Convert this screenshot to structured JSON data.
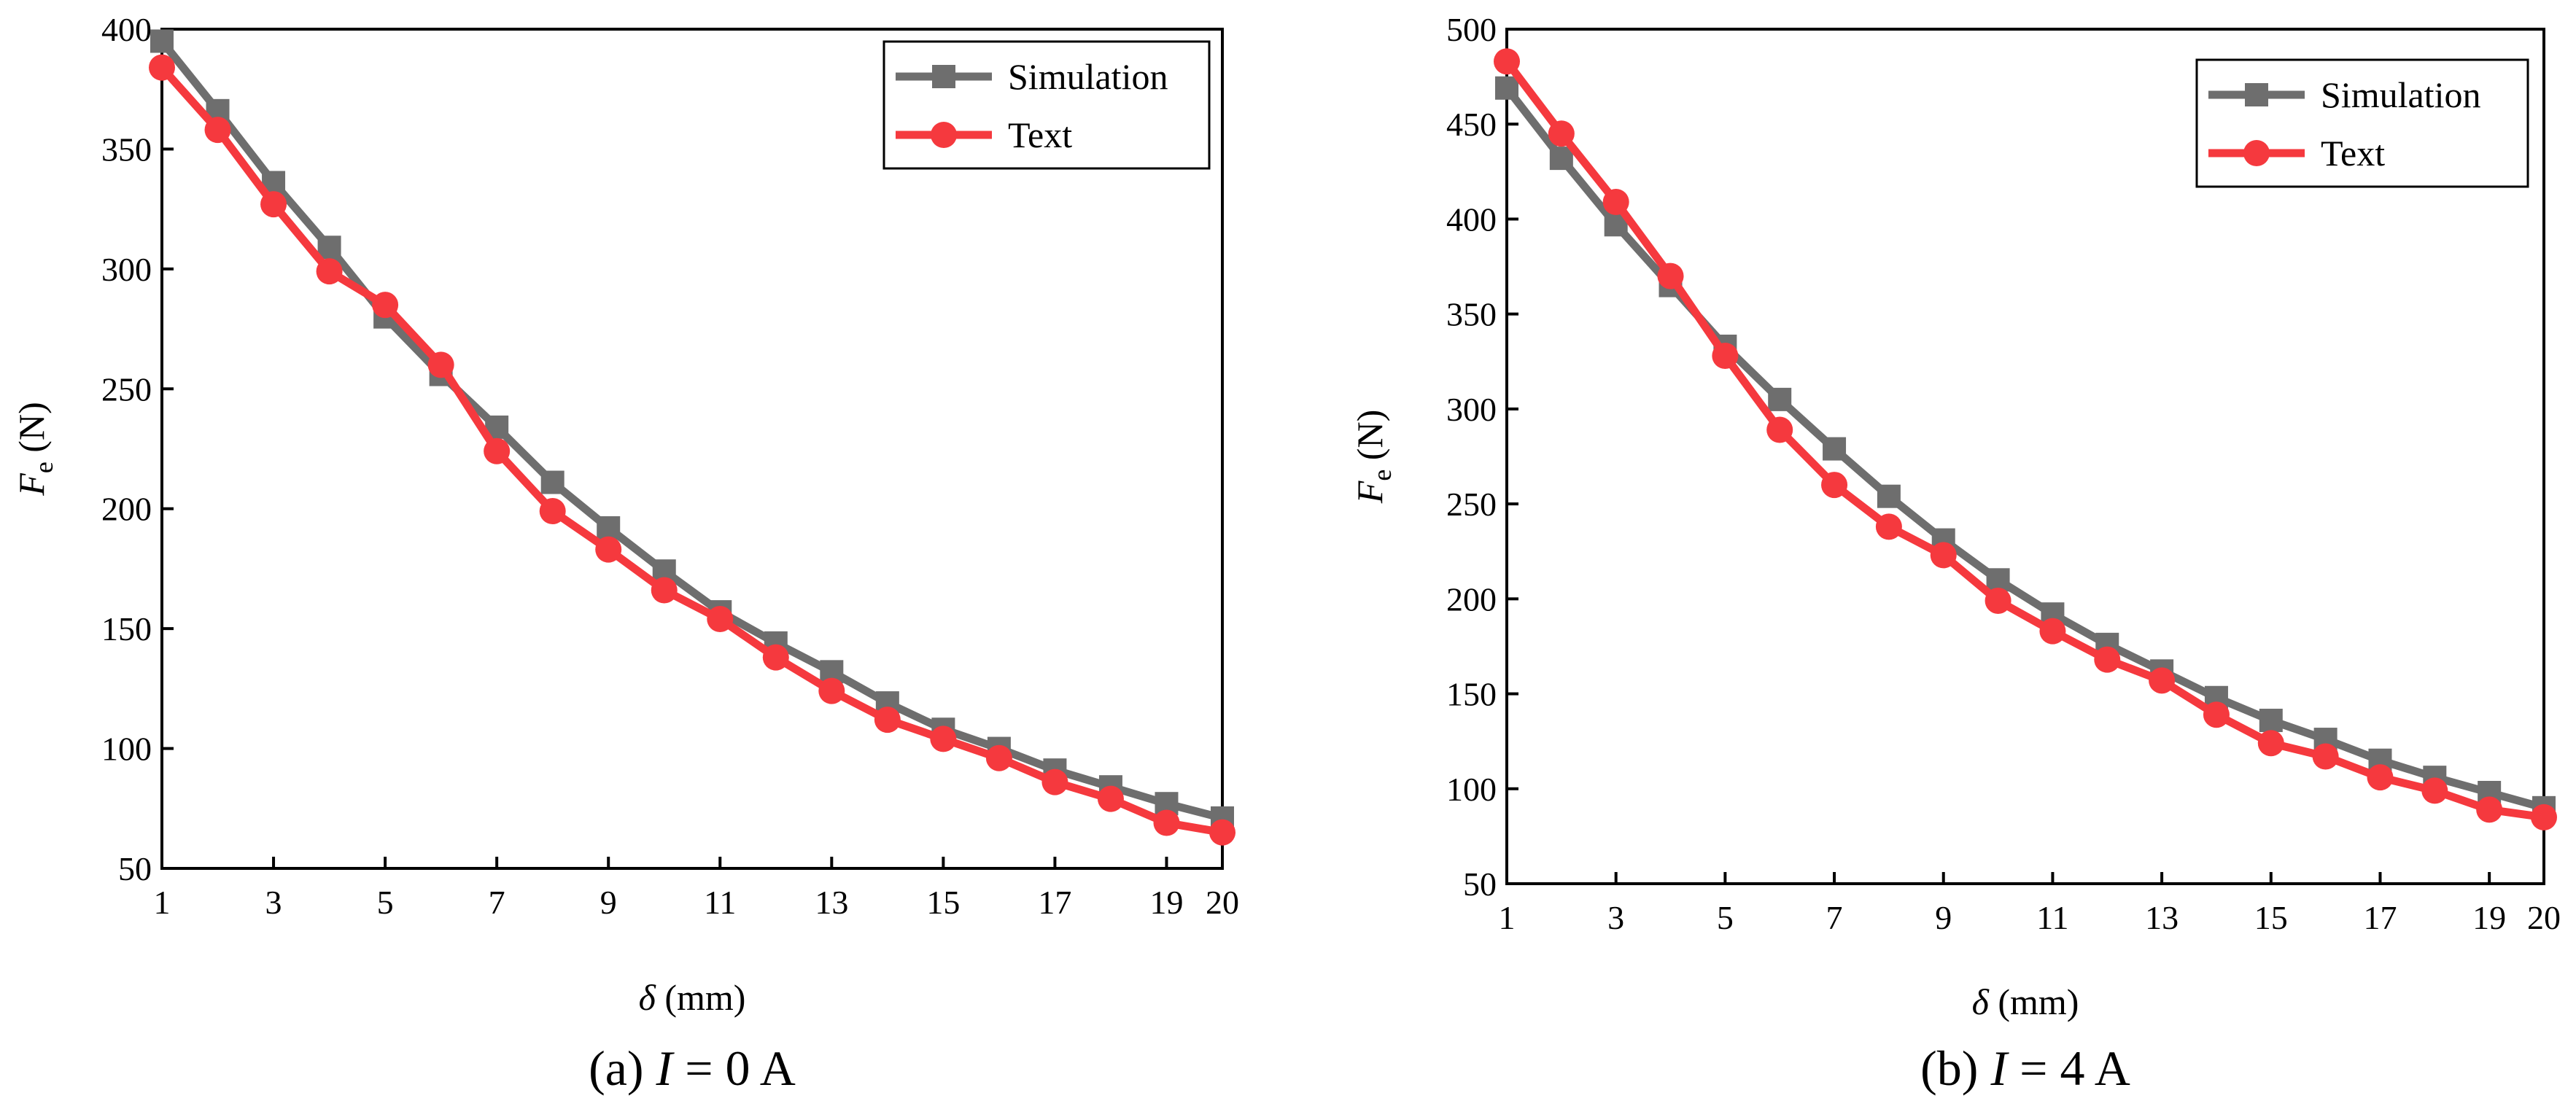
{
  "chart_data": [
    {
      "type": "line",
      "panel_letter": "a",
      "caption": {
        "letter": "(a)",
        "var": "I",
        "rest": " = 0 A"
      },
      "xlabel": {
        "symbol": "δ",
        "unit": " (mm)"
      },
      "ylabel": {
        "symbol": "F",
        "sub": "e",
        "unit": " (N)"
      },
      "xlim": [
        1,
        20
      ],
      "ylim": [
        50,
        400
      ],
      "xticks": [
        1,
        3,
        5,
        7,
        9,
        11,
        13,
        15,
        17,
        19,
        20
      ],
      "yticks": [
        50,
        100,
        150,
        200,
        250,
        300,
        350,
        400
      ],
      "legend_position": "top-right",
      "x": [
        1,
        2,
        3,
        4,
        5,
        6,
        7,
        8,
        9,
        10,
        11,
        12,
        13,
        14,
        15,
        16,
        17,
        18,
        19,
        20
      ],
      "series": [
        {
          "name": "Simulation",
          "marker": "square",
          "color": "#6e6e6e",
          "values": [
            395,
            366,
            336,
            309,
            280,
            256,
            234,
            211,
            192,
            174,
            157,
            144,
            132,
            119,
            108,
            100,
            91,
            84,
            77,
            71
          ]
        },
        {
          "name": "Text",
          "marker": "circle",
          "color": "#f5393e",
          "values": [
            384,
            358,
            327,
            299,
            285,
            260,
            224,
            199,
            183,
            166,
            154,
            138,
            124,
            112,
            104,
            96,
            86,
            79,
            69,
            65
          ]
        }
      ]
    },
    {
      "type": "line",
      "panel_letter": "b",
      "caption": {
        "letter": "(b)",
        "var": "I",
        "rest": " = 4 A"
      },
      "xlabel": {
        "symbol": "δ",
        "unit": " (mm)"
      },
      "ylabel": {
        "symbol": "F",
        "sub": "e",
        "unit": " (N)"
      },
      "xlim": [
        1,
        20
      ],
      "ylim": [
        50,
        500
      ],
      "xticks": [
        1,
        3,
        5,
        7,
        9,
        11,
        13,
        15,
        17,
        19,
        20
      ],
      "yticks": [
        50,
        100,
        150,
        200,
        250,
        300,
        350,
        400,
        450,
        500
      ],
      "legend_position": "top-right",
      "x": [
        1,
        2,
        3,
        4,
        5,
        6,
        7,
        8,
        9,
        10,
        11,
        12,
        13,
        14,
        15,
        16,
        17,
        18,
        19,
        20
      ],
      "series": [
        {
          "name": "Simulation",
          "marker": "square",
          "color": "#6e6e6e",
          "values": [
            469,
            432,
            397,
            365,
            333,
            305,
            279,
            254,
            231,
            210,
            192,
            176,
            162,
            148,
            136,
            126,
            115,
            106,
            98,
            90
          ]
        },
        {
          "name": "Text",
          "marker": "circle",
          "color": "#f5393e",
          "values": [
            483,
            445,
            409,
            370,
            328,
            289,
            260,
            238,
            223,
            199,
            183,
            168,
            157,
            139,
            124,
            117,
            106,
            99,
            89,
            85
          ]
        }
      ]
    }
  ]
}
